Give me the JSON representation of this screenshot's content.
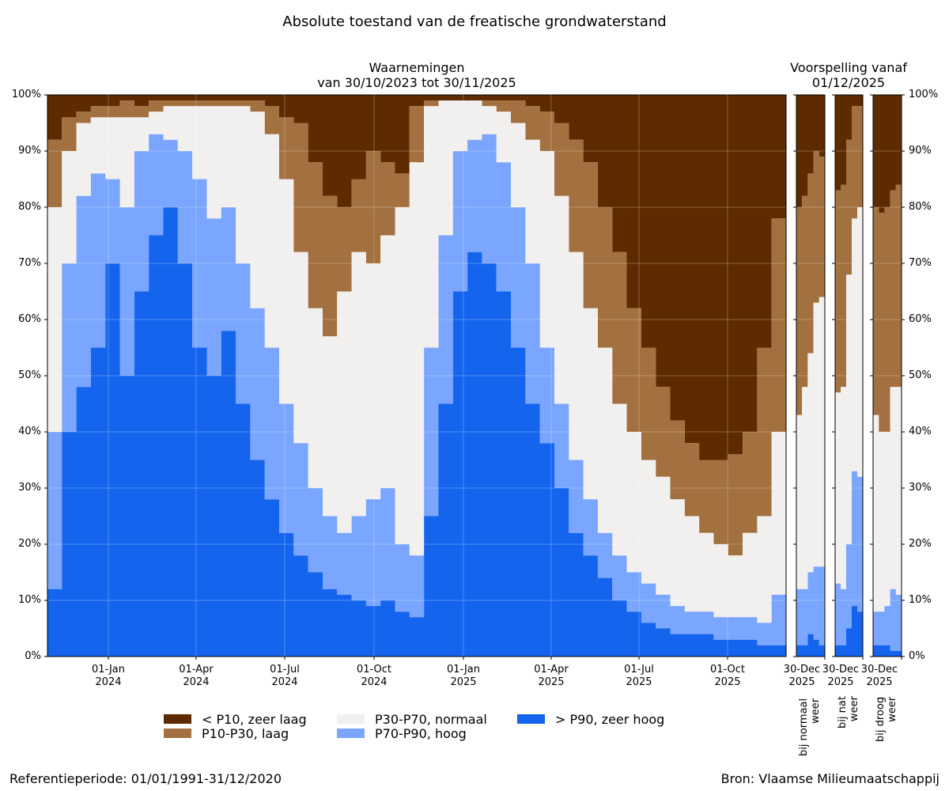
{
  "figure": {
    "title": "Absolute toestand van de freatische grondwaterstand",
    "observed_title_line1": "Waarnemingen",
    "observed_title_line2": "van 30/10/2023 tot 30/11/2025",
    "forecast_title_line1": "Voorspelling vanaf",
    "forecast_title_line2": "01/12/2025",
    "footer_left": "Referentieperiode: 01/01/1991-31/12/2020",
    "footer_right": "Bron: Vlaamse Milieumaatschappij"
  },
  "colors": {
    "zeer_laag": "#5e2b00",
    "laag": "#a3703f",
    "normaal": "#f2f0ef",
    "hoog": "#7aa6ff",
    "zeer_hoog": "#1464ee"
  },
  "yticks": [
    "0%",
    "10%",
    "20%",
    "30%",
    "40%",
    "50%",
    "60%",
    "70%",
    "80%",
    "90%",
    "100%"
  ],
  "xticks": [
    {
      "line1": "01-Jan",
      "line2": "2024",
      "x": 137
    },
    {
      "line1": "01-Apr",
      "line2": "2024",
      "x": 248
    },
    {
      "line1": "01-Jul",
      "line2": "2024",
      "x": 360
    },
    {
      "line1": "01-Oct",
      "line2": "2024",
      "x": 473
    },
    {
      "line1": "01-Jan",
      "line2": "2025",
      "x": 586
    },
    {
      "line1": "01-Apr",
      "line2": "2025",
      "x": 697
    },
    {
      "line1": "01-Jul",
      "line2": "2025",
      "x": 808
    },
    {
      "line1": "01-Oct",
      "line2": "2025",
      "x": 920
    }
  ],
  "forecast_panels": [
    {
      "tick_line1": "30-Dec",
      "tick_line2": "2025",
      "caption_line1": "bij normaal",
      "caption_line2": "weer"
    },
    {
      "tick_line1": "30-Dec",
      "tick_line2": "2025",
      "caption_line1": "bij nat",
      "caption_line2": "weer"
    },
    {
      "tick_line1": "30-Dec",
      "tick_line2": "2025",
      "caption_line1": "bij droog",
      "caption_line2": "weer"
    }
  ],
  "legend": [
    {
      "label": "< P10, zeer laag",
      "color_key": "zeer_laag"
    },
    {
      "label": "P10-P30, laag",
      "color_key": "laag"
    },
    {
      "label": "P30-P70, normaal",
      "color_key": "normaal"
    },
    {
      "label": "P70-P90, hoog",
      "color_key": "hoog"
    },
    {
      "label": "> P90, zeer hoog",
      "color_key": "zeer_hoog"
    }
  ],
  "chart_data": [
    {
      "type": "area",
      "stacked": true,
      "title": "Waarnemingen van 30/10/2023 tot 30/11/2025",
      "xlabel": "",
      "ylabel": "",
      "ylim": [
        0,
        100
      ],
      "y_unit": "% of wells",
      "grid": true,
      "legend_position": "bottom",
      "description": "Cumulative boundaries (% from bottom): b1 = top of >P90, b2 = top of P70-P90, b3 = top of P30-P70, b4 = top of P10-P30; above b4 is <P10",
      "x": [
        "2023-10-30",
        "2023-11-15",
        "2023-12-01",
        "2023-12-15",
        "2024-01-01",
        "2024-01-15",
        "2024-02-01",
        "2024-02-15",
        "2024-03-01",
        "2024-03-15",
        "2024-04-01",
        "2024-04-15",
        "2024-05-01",
        "2024-05-15",
        "2024-06-01",
        "2024-06-15",
        "2024-07-01",
        "2024-07-15",
        "2024-08-01",
        "2024-08-15",
        "2024-09-01",
        "2024-09-15",
        "2024-10-01",
        "2024-10-15",
        "2024-11-01",
        "2024-11-15",
        "2024-12-01",
        "2024-12-15",
        "2025-01-01",
        "2025-01-15",
        "2025-02-01",
        "2025-02-15",
        "2025-03-01",
        "2025-03-15",
        "2025-04-01",
        "2025-04-15",
        "2025-05-01",
        "2025-05-15",
        "2025-06-01",
        "2025-06-15",
        "2025-07-01",
        "2025-07-15",
        "2025-08-01",
        "2025-08-15",
        "2025-09-01",
        "2025-09-15",
        "2025-10-01",
        "2025-10-15",
        "2025-11-01",
        "2025-11-15",
        "2025-11-30"
      ],
      "series": [
        {
          "name": "> P90, zeer hoog (b1)",
          "values": [
            12,
            40,
            48,
            55,
            70,
            50,
            65,
            75,
            80,
            70,
            55,
            50,
            58,
            45,
            35,
            28,
            22,
            18,
            15,
            12,
            11,
            10,
            9,
            10,
            8,
            7,
            25,
            45,
            65,
            72,
            70,
            65,
            55,
            45,
            38,
            30,
            22,
            18,
            14,
            10,
            8,
            6,
            5,
            4,
            4,
            4,
            3,
            3,
            3,
            2,
            2
          ]
        },
        {
          "name": "P70-P90, hoog (b2)",
          "values": [
            40,
            70,
            82,
            86,
            85,
            80,
            90,
            93,
            92,
            90,
            85,
            78,
            80,
            70,
            62,
            55,
            45,
            38,
            30,
            25,
            22,
            25,
            28,
            30,
            20,
            18,
            55,
            75,
            90,
            92,
            93,
            88,
            80,
            70,
            55,
            45,
            35,
            28,
            22,
            18,
            15,
            13,
            11,
            9,
            8,
            8,
            7,
            7,
            7,
            6,
            11
          ]
        },
        {
          "name": "P30-P70, normaal (b3)",
          "values": [
            80,
            90,
            95,
            96,
            96,
            96,
            96,
            97,
            98,
            98,
            98,
            98,
            98,
            98,
            97,
            93,
            85,
            72,
            62,
            57,
            65,
            72,
            70,
            75,
            80,
            88,
            98,
            99,
            99,
            99,
            98,
            97,
            95,
            92,
            90,
            82,
            72,
            62,
            55,
            45,
            40,
            35,
            32,
            28,
            25,
            22,
            20,
            18,
            22,
            25,
            40
          ]
        },
        {
          "name": "P10-P30, laag (b4)",
          "values": [
            92,
            96,
            97,
            98,
            98,
            99,
            98,
            99,
            99,
            99,
            99,
            99,
            99,
            99,
            99,
            98,
            96,
            95,
            88,
            82,
            80,
            85,
            90,
            88,
            86,
            98,
            99,
            99,
            99,
            99,
            99,
            99,
            99,
            98,
            97,
            95,
            92,
            88,
            80,
            72,
            62,
            55,
            48,
            42,
            38,
            35,
            35,
            36,
            40,
            55,
            78
          ]
        }
      ]
    },
    {
      "type": "area",
      "stacked": true,
      "title": "Voorspelling vanaf 01/12/2025 - bij normaal weer",
      "ylim": [
        0,
        100
      ],
      "x": [
        "2025-12-01",
        "2025-12-08",
        "2025-12-15",
        "2025-12-22",
        "2025-12-30"
      ],
      "series": [
        {
          "name": "b1",
          "values": [
            2,
            2,
            4,
            3,
            2
          ]
        },
        {
          "name": "b2",
          "values": [
            12,
            12,
            15,
            16,
            16
          ]
        },
        {
          "name": "b3",
          "values": [
            43,
            48,
            54,
            63,
            64
          ]
        },
        {
          "name": "b4",
          "values": [
            80,
            82,
            86,
            90,
            89
          ]
        }
      ]
    },
    {
      "type": "area",
      "stacked": true,
      "title": "Voorspelling vanaf 01/12/2025 - bij nat weer",
      "ylim": [
        0,
        100
      ],
      "x": [
        "2025-12-01",
        "2025-12-08",
        "2025-12-15",
        "2025-12-22",
        "2025-12-30"
      ],
      "series": [
        {
          "name": "b1",
          "values": [
            2,
            2,
            5,
            9,
            8
          ]
        },
        {
          "name": "b2",
          "values": [
            13,
            12,
            20,
            33,
            32
          ]
        },
        {
          "name": "b3",
          "values": [
            47,
            48,
            68,
            78,
            80
          ]
        },
        {
          "name": "b4",
          "values": [
            83,
            84,
            92,
            98,
            98
          ]
        }
      ]
    },
    {
      "type": "area",
      "stacked": true,
      "title": "Voorspelling vanaf 01/12/2025 - bij droog weer",
      "ylim": [
        0,
        100
      ],
      "x": [
        "2025-12-01",
        "2025-12-08",
        "2025-12-15",
        "2025-12-22",
        "2025-12-30"
      ],
      "series": [
        {
          "name": "b1",
          "values": [
            2,
            2,
            2,
            1,
            1
          ]
        },
        {
          "name": "b2",
          "values": [
            8,
            8,
            9,
            12,
            11
          ]
        },
        {
          "name": "b3",
          "values": [
            43,
            40,
            40,
            48,
            48
          ]
        },
        {
          "name": "b4",
          "values": [
            80,
            79,
            80,
            83,
            84
          ]
        }
      ]
    }
  ]
}
